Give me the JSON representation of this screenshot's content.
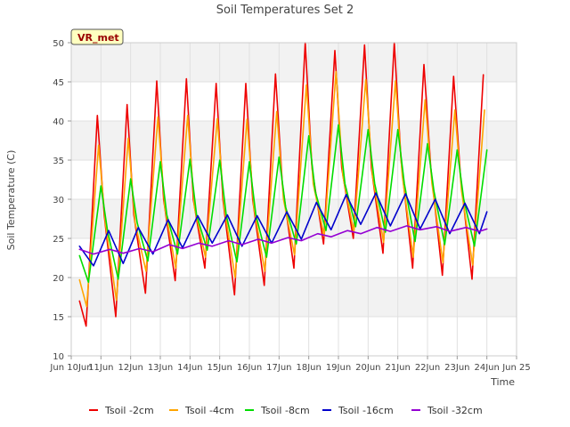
{
  "chart_data": {
    "type": "line",
    "title": "Soil Temperatures Set 2",
    "xlabel": "Time",
    "ylabel": "Soil Temperature (C)",
    "badge": "VR_met",
    "xlim": [
      10,
      25
    ],
    "ylim": [
      10,
      50
    ],
    "xticks": [
      {
        "v": 10,
        "label": "Jun 10Jun"
      },
      {
        "v": 11,
        "label": "11Jun"
      },
      {
        "v": 12,
        "label": "12Jun"
      },
      {
        "v": 13,
        "label": "13Jun"
      },
      {
        "v": 14,
        "label": "14Jun"
      },
      {
        "v": 15,
        "label": "15Jun"
      },
      {
        "v": 16,
        "label": "16Jun"
      },
      {
        "v": 17,
        "label": "17Jun"
      },
      {
        "v": 18,
        "label": "18Jun"
      },
      {
        "v": 19,
        "label": "19Jun"
      },
      {
        "v": 20,
        "label": "20Jun"
      },
      {
        "v": 21,
        "label": "21Jun"
      },
      {
        "v": 22,
        "label": "22Jun"
      },
      {
        "v": 23,
        "label": "23Jun"
      },
      {
        "v": 24,
        "label": "24Jun"
      },
      {
        "v": 25,
        "label": "Jun 25"
      }
    ],
    "yticks": [
      10,
      15,
      20,
      25,
      30,
      35,
      40,
      45,
      50
    ],
    "grid": true,
    "legend_position": "bottom",
    "series": [
      {
        "name": "Tsoil -2cm",
        "color": "#ee0000",
        "x": [
          10.28,
          10.5,
          10.88,
          11.11,
          11.5,
          11.88,
          12.11,
          12.5,
          12.88,
          13.11,
          13.5,
          13.88,
          14.11,
          14.5,
          14.88,
          15.11,
          15.5,
          15.88,
          16.11,
          16.5,
          16.88,
          17.11,
          17.5,
          17.88,
          18.11,
          18.5,
          18.88,
          19.11,
          19.5,
          19.88,
          20.11,
          20.5,
          20.88,
          21.11,
          21.5,
          21.88,
          22.11,
          22.5,
          22.88,
          23.11,
          23.5,
          23.88
        ],
        "y": [
          17.0,
          13.8,
          40.7,
          28,
          15.0,
          42.1,
          28,
          18.0,
          45.1,
          30,
          19.6,
          45.4,
          30,
          21.2,
          44.8,
          30,
          17.8,
          44.8,
          30,
          19.0,
          46.0,
          32,
          21.2,
          50.0,
          34,
          24.3,
          49.0,
          34,
          25.0,
          49.7,
          34,
          23.1,
          50.0,
          35,
          21.2,
          47.2,
          34,
          20.3,
          45.7,
          33,
          19.8,
          45.9
        ]
      },
      {
        "name": "Tsoil -4cm",
        "color": "#ffa500",
        "x": [
          10.28,
          10.52,
          10.92,
          11.15,
          11.52,
          11.92,
          12.15,
          12.52,
          12.92,
          13.15,
          13.52,
          13.92,
          14.15,
          14.52,
          14.92,
          15.15,
          15.52,
          15.92,
          16.15,
          16.52,
          16.92,
          17.15,
          17.52,
          17.92,
          18.15,
          18.52,
          18.92,
          19.15,
          19.52,
          19.92,
          20.15,
          20.52,
          20.92,
          21.15,
          21.52,
          21.92,
          22.15,
          22.52,
          22.92,
          23.15,
          23.52,
          23.92
        ],
        "y": [
          19.7,
          16.3,
          36.9,
          27,
          17.1,
          37.8,
          27,
          20.8,
          40.5,
          29,
          21.2,
          40.7,
          29,
          22.6,
          40.3,
          29,
          20.0,
          40.2,
          29,
          20.8,
          41.2,
          30,
          22.9,
          44.6,
          32,
          25.3,
          46.3,
          33,
          25.8,
          45.3,
          33,
          24.5,
          45.1,
          33,
          22.6,
          42.7,
          32,
          21.9,
          41.4,
          31,
          21.6,
          41.4
        ]
      },
      {
        "name": "Tsoil -8cm",
        "color": "#00dd00",
        "x": [
          10.28,
          10.58,
          11.0,
          11.22,
          11.58,
          12.0,
          12.22,
          12.58,
          13.0,
          13.22,
          13.58,
          14.0,
          14.22,
          14.58,
          15.0,
          15.22,
          15.58,
          16.0,
          16.22,
          16.58,
          17.0,
          17.22,
          17.58,
          18.0,
          18.22,
          18.58,
          19.0,
          19.22,
          19.58,
          20.0,
          20.22,
          20.58,
          21.0,
          21.22,
          21.58,
          22.0,
          22.22,
          22.58,
          23.0,
          23.22,
          23.58,
          24.0
        ],
        "y": [
          22.8,
          19.4,
          31.7,
          26,
          19.8,
          32.6,
          27,
          22.1,
          34.8,
          28,
          23.0,
          35.1,
          28,
          23.5,
          35.0,
          28,
          22.0,
          34.8,
          28,
          22.6,
          35.4,
          29,
          24.3,
          38.1,
          31,
          26.0,
          39.5,
          32,
          26.5,
          38.9,
          32,
          25.8,
          38.9,
          32,
          24.6,
          37.1,
          31,
          24.2,
          36.3,
          30,
          24.0,
          36.3
        ]
      },
      {
        "name": "Tsoil -16cm",
        "color": "#0000cc",
        "x": [
          10.28,
          10.75,
          11.26,
          11.75,
          12.26,
          12.75,
          13.26,
          13.75,
          14.26,
          14.75,
          15.26,
          15.75,
          16.26,
          16.75,
          17.26,
          17.75,
          18.26,
          18.75,
          19.26,
          19.75,
          20.26,
          20.75,
          21.26,
          21.75,
          22.26,
          22.75,
          23.26,
          23.75,
          24.0
        ],
        "y": [
          24.0,
          21.5,
          26.0,
          21.8,
          26.4,
          23.0,
          27.4,
          23.8,
          27.9,
          24.4,
          28.0,
          24.0,
          27.9,
          24.4,
          28.4,
          24.9,
          29.6,
          26.1,
          30.6,
          26.8,
          30.8,
          26.6,
          30.7,
          26.2,
          30.0,
          25.6,
          29.5,
          25.6,
          28.4
        ]
      },
      {
        "name": "Tsoil -32cm",
        "color": "#9400d3",
        "x": [
          10.28,
          10.75,
          11.3,
          11.75,
          12.3,
          12.75,
          13.3,
          13.75,
          14.3,
          14.75,
          15.3,
          15.75,
          16.3,
          16.75,
          17.3,
          17.75,
          18.3,
          18.75,
          19.3,
          19.75,
          20.3,
          20.75,
          21.3,
          21.75,
          22.3,
          22.75,
          23.3,
          23.75,
          24.0
        ],
        "y": [
          23.6,
          23.0,
          23.6,
          23.1,
          23.7,
          23.3,
          24.2,
          23.7,
          24.4,
          24.0,
          24.7,
          24.2,
          24.9,
          24.4,
          25.1,
          24.7,
          25.6,
          25.2,
          26.0,
          25.6,
          26.4,
          25.9,
          26.6,
          26.1,
          26.5,
          25.9,
          26.4,
          25.9,
          26.2
        ]
      }
    ]
  }
}
